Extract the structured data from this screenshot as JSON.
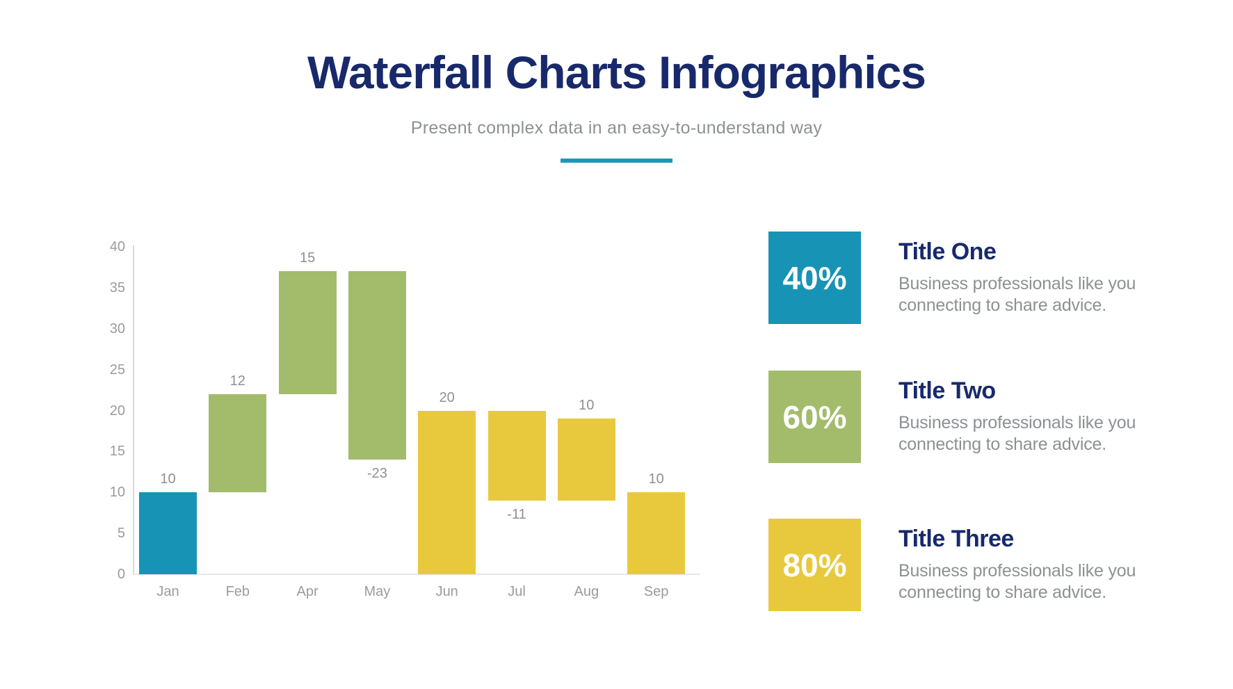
{
  "header": {
    "title": "Waterfall Charts Infographics",
    "subtitle": "Present complex data in an easy-to-understand way"
  },
  "chart_data": {
    "type": "bar",
    "subtype": "waterfall",
    "title": "",
    "xlabel": "",
    "ylabel": "",
    "categories": [
      "Jan",
      "Feb",
      "Apr",
      "May",
      "Jun",
      "Jul",
      "Aug",
      "Sep"
    ],
    "ylim": [
      0,
      40
    ],
    "yticks": [
      0,
      5,
      10,
      15,
      20,
      25,
      30,
      35,
      40
    ],
    "grid": false,
    "legend": "none",
    "bars": [
      {
        "category": "Jan",
        "from": 0,
        "to": 10,
        "label": "10",
        "label_position": "above",
        "color": "#1794b5",
        "color_name": "teal"
      },
      {
        "category": "Feb",
        "from": 10,
        "to": 22,
        "label": "12",
        "label_position": "above",
        "color": "#a2bc6b",
        "color_name": "green"
      },
      {
        "category": "Apr",
        "from": 22,
        "to": 37,
        "label": "15",
        "label_position": "above",
        "color": "#a2bc6b",
        "color_name": "green"
      },
      {
        "category": "May",
        "from": 37,
        "to": 14,
        "label": "-23",
        "label_position": "below",
        "color": "#a2bc6b",
        "color_name": "green"
      },
      {
        "category": "Jun",
        "from": 0,
        "to": 20,
        "label": "20",
        "label_position": "above",
        "color": "#e8c93e",
        "color_name": "yellow"
      },
      {
        "category": "Jul",
        "from": 20,
        "to": 9,
        "label": "-11",
        "label_position": "below",
        "color": "#e8c93e",
        "color_name": "yellow"
      },
      {
        "category": "Aug",
        "from": 9,
        "to": 19,
        "label": "10",
        "label_position": "above",
        "color": "#e8c93e",
        "color_name": "yellow"
      },
      {
        "category": "Sep",
        "from": 0,
        "to": 10,
        "label": "10",
        "label_position": "above",
        "color": "#e8c93e",
        "color_name": "yellow"
      }
    ]
  },
  "cards": [
    {
      "percent": "40%",
      "title": "Title One",
      "description": "Business professionals like you\nconnecting to share advice.",
      "color": "#1794b5"
    },
    {
      "percent": "60%",
      "title": "Title Two",
      "description": "Business professionals like you\nconnecting to share advice.",
      "color": "#a2bc6b"
    },
    {
      "percent": "80%",
      "title": "Title Three",
      "description": "Business professionals like you\nconnecting to share advice.",
      "color": "#e8c93e"
    }
  ],
  "colors": {
    "title_navy": "#18296b",
    "subtitle_gray": "#8d9094",
    "accent_underline": "#1899ba",
    "chart_label_gray": "#9b9b9b",
    "value_label_gray": "#8f8f8f",
    "teal": "#1794b5",
    "green": "#a2bc6b",
    "yellow": "#e8c93e"
  }
}
